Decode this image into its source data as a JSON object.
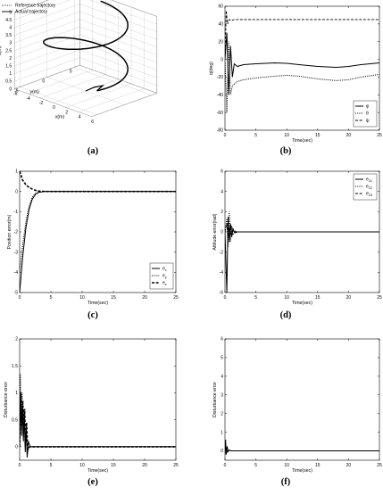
{
  "figure": {
    "captions": [
      "(a)",
      "(b)",
      "(c)",
      "(d)",
      "(e)",
      "(f)"
    ]
  },
  "chart_data": [
    {
      "id": "a",
      "type": "line",
      "dimension": "3d",
      "title": "",
      "xlabel": "x(m)",
      "ylabel": "y(m)",
      "zlabel": "z(m)",
      "xticks": [
        "-6",
        "-4",
        "-2",
        "0",
        "2",
        "4",
        "6"
      ],
      "yticks": [
        "-5",
        "0",
        "5"
      ],
      "zticks": [
        "0",
        "0.5",
        "1",
        "1.5",
        "2",
        "2.5",
        "3",
        "3.5",
        "4",
        "4.5",
        "5"
      ],
      "xlim": [
        -6,
        6
      ],
      "ylim": [
        -6,
        6
      ],
      "zlim": [
        0,
        5
      ],
      "grid": true,
      "legend": "top-left",
      "series": [
        {
          "name": "Reference trajectory",
          "style": "dotted",
          "helix": {
            "radius": 5,
            "z_start": 1,
            "z_end": 5,
            "turns": 1.4
          }
        },
        {
          "name": "Actual trajectory",
          "style": "solid",
          "helix": {
            "radius": 5,
            "z_start": 1,
            "z_end": 5,
            "turns": 1.4
          },
          "x": [
            0,
            1.5,
            3.5
          ],
          "y": [
            0,
            -0.2,
            -1.0
          ],
          "z": [
            0,
            0.5,
            1.0
          ]
        }
      ]
    },
    {
      "id": "b",
      "type": "line",
      "title": "",
      "xlabel": "Time(sec)",
      "ylabel": "q(deg)",
      "xlim": [
        0,
        25
      ],
      "ylim": [
        -80,
        60
      ],
      "xticks": [
        "0",
        "5",
        "10",
        "15",
        "20",
        "25"
      ],
      "yticks": [
        "-80",
        "-60",
        "-40",
        "-20",
        "0",
        "20",
        "40",
        "60"
      ],
      "legend": "bottom-right",
      "series": [
        {
          "name": "φ",
          "style": "solid",
          "x": [
            0,
            0.3,
            0.6,
            0.9,
            1.2,
            1.5,
            2,
            3,
            5,
            8,
            10,
            12,
            15,
            18,
            20,
            22,
            25
          ],
          "y": [
            0,
            30,
            -40,
            15,
            -20,
            -5,
            -8,
            -6,
            -5,
            -4,
            -4.5,
            -6,
            -8,
            -9,
            -8,
            -6,
            -4
          ]
        },
        {
          "name": "θ",
          "style": "dotted",
          "x": [
            0,
            0.3,
            0.6,
            0.9,
            1.2,
            1.5,
            2,
            3,
            5,
            8,
            10,
            12,
            15,
            18,
            20,
            22,
            25
          ],
          "y": [
            0,
            -60,
            20,
            -40,
            -30,
            -28,
            -25,
            -23,
            -21,
            -19,
            -18,
            -19,
            -22,
            -24,
            -23,
            -20,
            -17
          ]
        },
        {
          "name": "ψ",
          "style": "dashed",
          "x": [
            0,
            0.2,
            0.4,
            0.7,
            1,
            1.5,
            25
          ],
          "y": [
            0,
            55,
            40,
            45,
            44,
            45,
            45
          ]
        }
      ]
    },
    {
      "id": "c",
      "type": "line",
      "title": "",
      "xlabel": "Time(sec)",
      "ylabel": "Position error(m)",
      "xlim": [
        0,
        25
      ],
      "ylim": [
        -5,
        1
      ],
      "xticks": [
        "0",
        "5",
        "10",
        "15",
        "20",
        "25"
      ],
      "yticks": [
        "-5",
        "-4",
        "-3",
        "-2",
        "-1",
        "0",
        "1"
      ],
      "legend": "bottom-right",
      "series": [
        {
          "name": "e_x",
          "style": "solid",
          "x": [
            0,
            0.5,
            1,
            1.5,
            2,
            2.5,
            3,
            4,
            25
          ],
          "y": [
            -5,
            -3.2,
            -1.8,
            -0.9,
            -0.4,
            -0.15,
            -0.05,
            0,
            0
          ]
        },
        {
          "name": "e_y",
          "style": "dotted",
          "x": [
            0,
            0.5,
            1,
            1.5,
            2,
            2.5,
            3,
            4,
            25
          ],
          "y": [
            -4,
            -2.6,
            -1.5,
            -0.75,
            -0.3,
            -0.1,
            -0.03,
            0,
            0
          ]
        },
        {
          "name": "e_z",
          "style": "dashed-thick",
          "x": [
            0,
            0.5,
            1,
            1.5,
            2,
            2.5,
            3,
            4,
            25
          ],
          "y": [
            1,
            0.55,
            0.33,
            0.2,
            0.12,
            0.06,
            0.02,
            0,
            0
          ]
        }
      ]
    },
    {
      "id": "d",
      "type": "line",
      "title": "",
      "xlabel": "Time(sec)",
      "ylabel": "Attitude error(rad)",
      "xlim": [
        0,
        25
      ],
      "ylim": [
        -6,
        6
      ],
      "xticks": [
        "0",
        "5",
        "10",
        "15",
        "20",
        "25"
      ],
      "yticks": [
        "-6",
        "-4",
        "-2",
        "0",
        "2",
        "4",
        "6"
      ],
      "legend": "top-right",
      "series": [
        {
          "name": "e_21",
          "style": "solid",
          "x": [
            0,
            0.3,
            0.5,
            0.7,
            0.9,
            1.1,
            1.3,
            1.6,
            2,
            25
          ],
          "y": [
            0,
            -6,
            1.5,
            -1,
            0.8,
            -0.5,
            0.3,
            -0.1,
            0,
            0
          ]
        },
        {
          "name": "e_22",
          "style": "dotted",
          "x": [
            0,
            0.3,
            0.5,
            0.7,
            0.9,
            1.1,
            1.3,
            1.6,
            2,
            25
          ],
          "y": [
            0,
            1.3,
            -1.5,
            2,
            -1,
            0.6,
            -0.3,
            0.1,
            0,
            0
          ]
        },
        {
          "name": "e_23",
          "style": "dashed",
          "x": [
            0,
            0.3,
            0.5,
            0.7,
            0.9,
            1.2,
            1.5,
            25
          ],
          "y": [
            0,
            0.8,
            -0.6,
            0.4,
            -0.2,
            0.1,
            0,
            0
          ]
        }
      ]
    },
    {
      "id": "e",
      "type": "line",
      "title": "",
      "xlabel": "Time(sec)",
      "ylabel": "Disturbance error",
      "xlim": [
        0,
        25
      ],
      "ylim": [
        -0.25,
        2
      ],
      "xticks": [
        "0",
        "5",
        "10",
        "15",
        "20",
        "25"
      ],
      "yticks": [
        "0",
        "0.5",
        "1",
        "1.5",
        "2"
      ],
      "series": [
        {
          "name": "",
          "style": "solid",
          "x": [
            0,
            0.15,
            0.3,
            0.45,
            0.6,
            0.75,
            0.9,
            1.05,
            1.2,
            1.4,
            1.7,
            25
          ],
          "y": [
            0,
            0.9,
            0.2,
            0.75,
            0.1,
            0.6,
            -0.1,
            0.4,
            -0.2,
            0.1,
            0,
            0
          ]
        },
        {
          "name": "",
          "style": "dashed-thick",
          "x": [
            0,
            0.2,
            0.35,
            0.5,
            0.65,
            0.8,
            0.95,
            1.1,
            1.3,
            1.6,
            25
          ],
          "y": [
            0,
            1.0,
            0.4,
            0.85,
            0.3,
            0.7,
            0.1,
            0.45,
            -0.05,
            0,
            0
          ]
        },
        {
          "name": "",
          "style": "dotted",
          "x": [
            0,
            0.1,
            0.25,
            0.4,
            0.55,
            0.7,
            0.85,
            1.0,
            1.2,
            1.5,
            25
          ],
          "y": [
            0,
            1.35,
            0.5,
            1.0,
            0.2,
            0.7,
            0.0,
            0.35,
            -0.15,
            0,
            0
          ]
        }
      ]
    },
    {
      "id": "f",
      "type": "line",
      "title": "",
      "xlabel": "Time(sec)",
      "ylabel": "Disturbance error",
      "xlim": [
        0,
        25
      ],
      "ylim": [
        -0.5,
        6
      ],
      "xticks": [
        "0",
        "5",
        "10",
        "15",
        "20",
        "25"
      ],
      "yticks": [
        "0",
        "1",
        "2",
        "3",
        "4",
        "5",
        "6"
      ],
      "series": [
        {
          "name": "",
          "style": "solid",
          "x": [
            0,
            0.1,
            0.2,
            0.35,
            0.5,
            0.7,
            1.0,
            25
          ],
          "y": [
            0,
            0.6,
            -0.2,
            0.25,
            -0.05,
            0.05,
            0,
            0
          ]
        },
        {
          "name": "",
          "style": "dotted",
          "x": [
            0,
            0.1,
            0.25,
            0.4,
            0.6,
            0.9,
            25
          ],
          "y": [
            0,
            -0.1,
            0.15,
            -0.05,
            0.02,
            0,
            0
          ]
        }
      ]
    }
  ]
}
